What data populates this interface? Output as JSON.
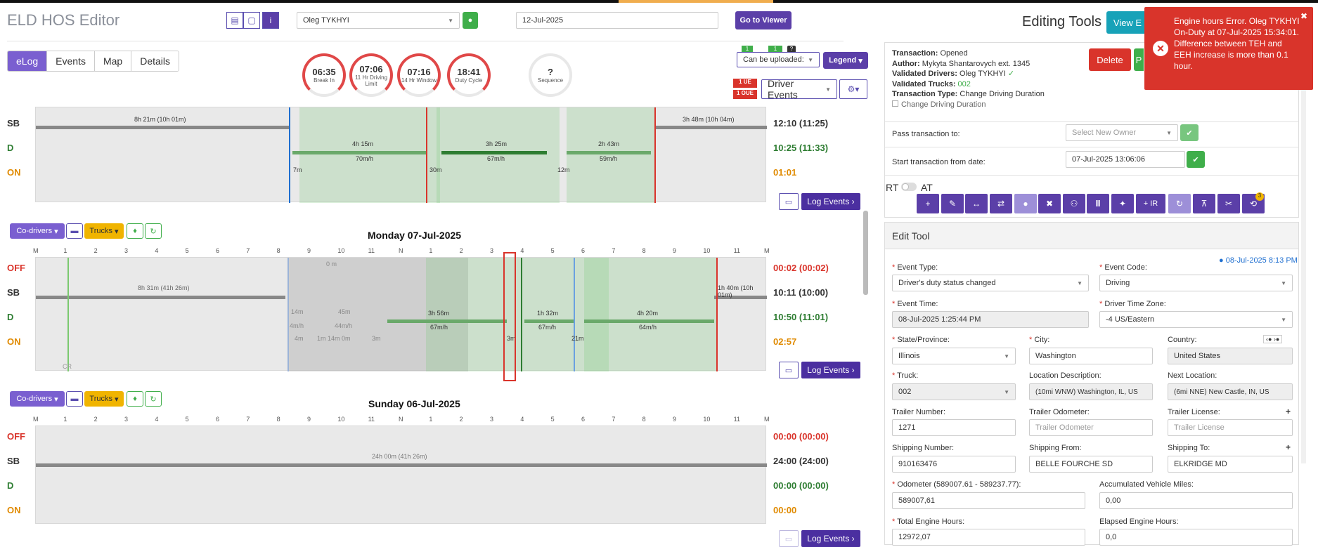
{
  "app": {
    "title": "ELD HOS Editor"
  },
  "header": {
    "driver": "Oleg TYKHYI",
    "date": "12-Jul-2025",
    "go_to_viewer": "Go to Viewer",
    "editing_tools": "Editing Tools",
    "view_btn": "View E"
  },
  "tabs": [
    "eLog",
    "Events",
    "Map",
    "Details"
  ],
  "gauges": [
    {
      "value": "06:35",
      "label": "Break In"
    },
    {
      "value": "07:06",
      "label": "11 Hr Driving Limit"
    },
    {
      "value": "07:16",
      "label": "14 Hr Window"
    },
    {
      "value": "18:41",
      "label": "Duty Cycle"
    },
    {
      "value": "?",
      "label": "Sequence"
    }
  ],
  "controls": {
    "can_be_uploaded": "Can be uploaded:",
    "legend": "Legend",
    "driver_events": "Driver Events",
    "ue": "1 UE",
    "oue": "1 OUE",
    "badge1": "1",
    "badge2": "1",
    "q": "?"
  },
  "day0": {
    "rows": [
      "SB",
      "D",
      "ON"
    ],
    "totals": [
      "12:10 (11:25)",
      "10:25 (11:33)",
      "01:01"
    ],
    "labels": {
      "sb1": "8h 21m (10h 01m)",
      "sb2": "3h 48m (10h 04m)",
      "d1": "4h 15m",
      "d1s": "70m/h",
      "d2": "3h 25m",
      "d2s": "67m/h",
      "d3": "2h 43m",
      "d3s": "59m/h",
      "on1": "7m",
      "on2": "30m",
      "on3": "12m"
    },
    "log_events": "Log Events"
  },
  "day1": {
    "title": "Monday 07-Jul-2025",
    "co_drivers": "Co-drivers",
    "trucks": "Trucks",
    "rows": [
      "OFF",
      "SB",
      "D",
      "ON"
    ],
    "totals": [
      "00:02 (00:02)",
      "10:11 (10:00)",
      "10:50 (11:01)",
      "02:57"
    ],
    "labels": {
      "sb1": "8h 31m (41h 26m)",
      "sb2": "1h 40m (10h 01m)",
      "d1": "3h 56m",
      "d1s": "67m/h",
      "d2": "1h 32m",
      "d2s": "67m/h",
      "d3": "4h 20m",
      "d3s": "64m/h",
      "on1": "3m",
      "on2": "21m",
      "off1": "0 m",
      "d0": "14m",
      "d0s": "4m/h",
      "d0b": "45m",
      "d0bs": "44m/h",
      "on0": "4m",
      "on0b": "1m 14m 0m",
      "on0c": "3m",
      "cr": "CR"
    },
    "log_events": "Log Events"
  },
  "day2": {
    "title": "Sunday 06-Jul-2025",
    "co_drivers": "Co-drivers",
    "trucks": "Trucks",
    "rows": [
      "OFF",
      "SB",
      "D",
      "ON"
    ],
    "totals": [
      "00:00 (00:00)",
      "24:00 (24:00)",
      "00:00 (00:00)",
      "00:00"
    ],
    "labels": {
      "sb1": "24h 00m (41h 26m)"
    },
    "log_events": "Log Events"
  },
  "hours": [
    "M",
    "1",
    "2",
    "3",
    "4",
    "5",
    "6",
    "7",
    "8",
    "9",
    "10",
    "11",
    "N",
    "1",
    "2",
    "3",
    "4",
    "5",
    "6",
    "7",
    "8",
    "9",
    "10",
    "11",
    "M"
  ],
  "transaction": {
    "status_label": "Transaction:",
    "status": "Opened",
    "author_label": "Author:",
    "author": "Mykyta Shantarovych ext. 1345",
    "drivers_label": "Validated Drivers:",
    "drivers": "Oleg TYKHYI",
    "trucks_label": "Validated Trucks:",
    "trucks": "002",
    "type_label": "Transaction Type:",
    "type": "Change Driving Duration",
    "change_cb": "Change Driving Duration",
    "delete": "Delete",
    "p": "P",
    "pass_label": "Pass transaction to:",
    "pass_placeholder": "Select New Owner",
    "start_label": "Start transaction from date:",
    "start_value": "07-Jul-2025 13:06:06"
  },
  "rt": "RT",
  "at": "AT",
  "ir": "+ IR",
  "tool_badge": "3",
  "edit_tool": {
    "title": "Edit Tool",
    "timestamp": "08-Jul-2025 8:13 PM",
    "event_type_label": "Event Type:",
    "event_type": "Driver's duty status changed",
    "event_code_label": "Event Code:",
    "event_code": "Driving",
    "event_time_label": "Event Time:",
    "event_time": "08-Jul-2025 1:25:44 PM",
    "tz_label": "Driver Time Zone:",
    "tz": "-4 US/Eastern",
    "state_label": "State/Province:",
    "state": "Illinois",
    "city_label": "City:",
    "city": "Washington",
    "country_label": "Country:",
    "country": "United States",
    "truck_label": "Truck:",
    "truck": "002",
    "locdesc_label": "Location Description:",
    "locdesc": "(10mi WNW) Washington, IL, US",
    "nextloc_label": "Next Location:",
    "nextloc": "(6mi NNE) New Castle, IN, US",
    "trailer_num_label": "Trailer Number:",
    "trailer_num": "1271",
    "trailer_odo_label": "Trailer Odometer:",
    "trailer_odo_ph": "Trailer Odometer",
    "trailer_lic_label": "Trailer License:",
    "trailer_lic_ph": "Trailer License",
    "ship_num_label": "Shipping Number:",
    "ship_num": "910163476",
    "ship_from_label": "Shipping From:",
    "ship_from": "BELLE FOURCHE SD",
    "ship_to_label": "Shipping To:",
    "ship_to": "ELKRIDGE MD",
    "odo_label": "Odometer (589007.61 - 589237.77):",
    "odo": "589007,61",
    "avm_label": "Accumulated Vehicle Miles:",
    "avm": "0,00",
    "teh_label": "Total Engine Hours:",
    "teh": "12972,07",
    "eeh_label": "Elapsed Engine Hours:",
    "eeh": "0,0"
  },
  "toast": {
    "message": "Engine hours Error. Oleg TYKHYI On-Duty at 07-Jul-2025 15:34:01. Difference between TEH and EEH increase is more than 0.1 hour.",
    "close": "✖"
  }
}
